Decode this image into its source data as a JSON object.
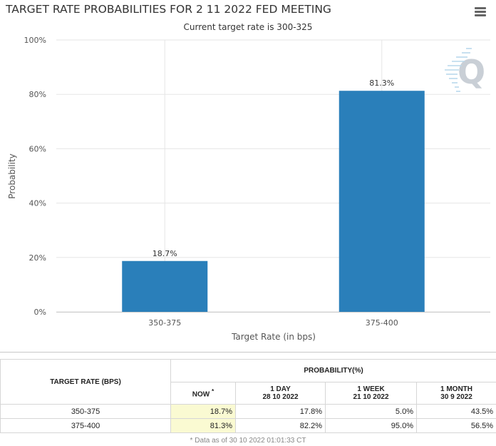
{
  "page": {
    "title": "TARGET RATE PROBABILITIES FOR 2 11 2022 FED MEETING",
    "subtitle": "Current target rate is 300-325",
    "menu_icon": "hamburger-menu-icon",
    "watermark_icon": "q-logo-icon"
  },
  "chart_data": {
    "type": "bar",
    "title": "TARGET RATE PROBABILITIES FOR 2 11 2022 FED MEETING",
    "subtitle": "Current target rate is 300-325",
    "categories": [
      "350-375",
      "375-400"
    ],
    "values": [
      18.7,
      81.3
    ],
    "data_labels": [
      "18.7%",
      "81.3%"
    ],
    "xlabel": "Target Rate (in bps)",
    "ylabel": "Probability",
    "ylim": [
      0,
      100
    ],
    "yticks": [
      "0%",
      "20%",
      "40%",
      "60%",
      "80%",
      "100%"
    ],
    "grid": true,
    "bar_color": "#2a7fba",
    "grid_color": "#e6e6e6"
  },
  "table": {
    "target_header": "TARGET RATE (BPS)",
    "probability_header": "PROBABILITY(%)",
    "columns": [
      {
        "label": "NOW",
        "marker": "*",
        "date": ""
      },
      {
        "label": "1 DAY",
        "date": "28 10 2022"
      },
      {
        "label": "1 WEEK",
        "date": "21 10 2022"
      },
      {
        "label": "1 MONTH",
        "date": "30 9 2022"
      }
    ],
    "rows": [
      {
        "rate": "350-375",
        "now": "18.7%",
        "day": "17.8%",
        "week": "5.0%",
        "month": "43.5%"
      },
      {
        "rate": "375-400",
        "now": "81.3%",
        "day": "82.2%",
        "week": "95.0%",
        "month": "56.5%"
      }
    ],
    "footnote": "* Data as of 30 10 2022 01:01:33 CT",
    "now_highlight": "#fafad2"
  }
}
